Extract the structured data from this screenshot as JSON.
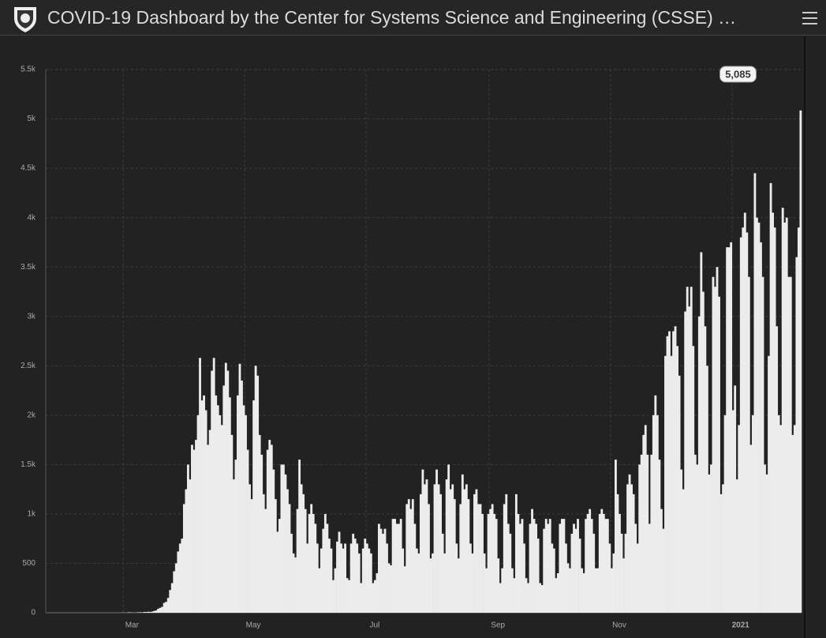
{
  "header": {
    "title": "COVID-19 Dashboard by the Center for Systems Science and Engineering (CSSE) …"
  },
  "chart_data": {
    "type": "bar",
    "color": "#ececec",
    "grid": true,
    "xlim": [
      0,
      380
    ],
    "xticks": [
      {
        "value": 39,
        "label": "Mar"
      },
      {
        "value": 100,
        "label": "May"
      },
      {
        "value": 161,
        "label": "Jul"
      },
      {
        "value": 223,
        "label": "Sep"
      },
      {
        "value": 284,
        "label": "Nov"
      },
      {
        "value": 345,
        "label": "2021"
      }
    ],
    "ylim": [
      0,
      5500
    ],
    "yticks": [
      0,
      500,
      {
        "value": 1000,
        "label": "1k"
      },
      {
        "value": 1500,
        "label": "1.5k"
      },
      {
        "value": 2000,
        "label": "2k"
      },
      {
        "value": 2500,
        "label": "2.5k"
      },
      {
        "value": 3000,
        "label": "3k"
      },
      {
        "value": 3500,
        "label": "3.5k"
      },
      {
        "value": 4000,
        "label": "4k"
      },
      {
        "value": 4500,
        "label": "4.5k"
      },
      {
        "value": 5000,
        "label": "5k"
      },
      {
        "value": 5500,
        "label": "5.5k"
      }
    ],
    "annotations": [
      {
        "x": 379,
        "label": "5,085"
      }
    ],
    "values": [
      0,
      0,
      0,
      0,
      0,
      0,
      0,
      0,
      0,
      0,
      0,
      0,
      0,
      0,
      0,
      0,
      0,
      0,
      0,
      0,
      0,
      0,
      0,
      0,
      0,
      0,
      0,
      0,
      0,
      0,
      0,
      0,
      0,
      0,
      0,
      0,
      0,
      0,
      1,
      1,
      0,
      4,
      3,
      2,
      1,
      2,
      4,
      5,
      4,
      8,
      7,
      10,
      8,
      12,
      18,
      23,
      40,
      50,
      60,
      100,
      110,
      150,
      230,
      300,
      420,
      500,
      620,
      700,
      750,
      1100,
      1250,
      1500,
      1350,
      1700,
      1650,
      1750,
      2000,
      2580,
      2150,
      2200,
      2050,
      1700,
      1850,
      2450,
      2580,
      2200,
      2100,
      2000,
      1900,
      2300,
      2530,
      2450,
      2180,
      1800,
      1350,
      1550,
      2200,
      2520,
      2350,
      2100,
      2000,
      1650,
      1300,
      1150,
      2150,
      2500,
      2400,
      1800,
      1600,
      1200,
      1050,
      1650,
      1750,
      1700,
      1450,
      1150,
      820,
      950,
      1500,
      1500,
      1400,
      1250,
      1100,
      800,
      600,
      560,
      1050,
      1550,
      1300,
      1200,
      1050,
      700,
      1000,
      1100,
      1000,
      900,
      700,
      450,
      650,
      850,
      1000,
      900,
      750,
      650,
      330,
      450,
      720,
      820,
      700,
      650,
      700,
      350,
      330,
      700,
      800,
      750,
      700,
      600,
      300,
      650,
      750,
      700,
      650,
      600,
      300,
      330,
      400,
      900,
      850,
      800,
      850,
      700,
      500,
      480,
      950,
      950,
      900,
      900,
      950,
      650,
      470,
      1100,
      1150,
      1050,
      1150,
      900,
      650,
      600,
      1200,
      1450,
      1300,
      1350,
      1100,
      550,
      600,
      1300,
      1450,
      1300,
      1200,
      800,
      600,
      1350,
      1500,
      1250,
      1300,
      1150,
      700,
      550,
      1100,
      1400,
      1250,
      1300,
      1150,
      700,
      600,
      1200,
      1250,
      1100,
      1100,
      1000,
      600,
      450,
      1000,
      1050,
      1100,
      1000,
      950,
      550,
      300,
      450,
      1100,
      1200,
      900,
      800,
      450,
      350,
      1200,
      1000,
      900,
      950,
      700,
      350,
      300,
      900,
      1050,
      950,
      900,
      750,
      300,
      280,
      850,
      950,
      900,
      950,
      700,
      650,
      350,
      400,
      900,
      950,
      950,
      700,
      500,
      450,
      800,
      900,
      850,
      950,
      750,
      450,
      400,
      950,
      1000,
      1050,
      950,
      800,
      450,
      450,
      1000,
      1050,
      1000,
      950,
      950,
      700,
      450,
      600,
      1550,
      1200,
      1000,
      800,
      550,
      800,
      1300,
      1400,
      1300,
      1200,
      900,
      700,
      1500,
      1600,
      1800,
      1900,
      1600,
      900,
      1600,
      2000,
      2200,
      2000,
      1550,
      1050,
      850,
      2600,
      2800,
      2850,
      2600,
      2850,
      2900,
      2700,
      2400,
      1450,
      1250,
      3050,
      3300,
      3100,
      3300,
      2700,
      1600,
      1500,
      3000,
      3650,
      3250,
      2900,
      2500,
      1400,
      1500,
      3400,
      3300,
      3500,
      3200,
      1200,
      1300,
      2000,
      3700,
      3700,
      3750,
      2050,
      2300,
      1350,
      1900,
      3800,
      3900,
      4050,
      3850,
      3400,
      1700,
      2000,
      4450,
      4000,
      3950,
      3750,
      3400,
      1500,
      1400,
      2600,
      4350,
      4050,
      3900,
      2900,
      2000,
      1900,
      4100,
      3950,
      4000,
      3400,
      3400,
      1800,
      1900,
      3600,
      3900,
      5085
    ]
  }
}
